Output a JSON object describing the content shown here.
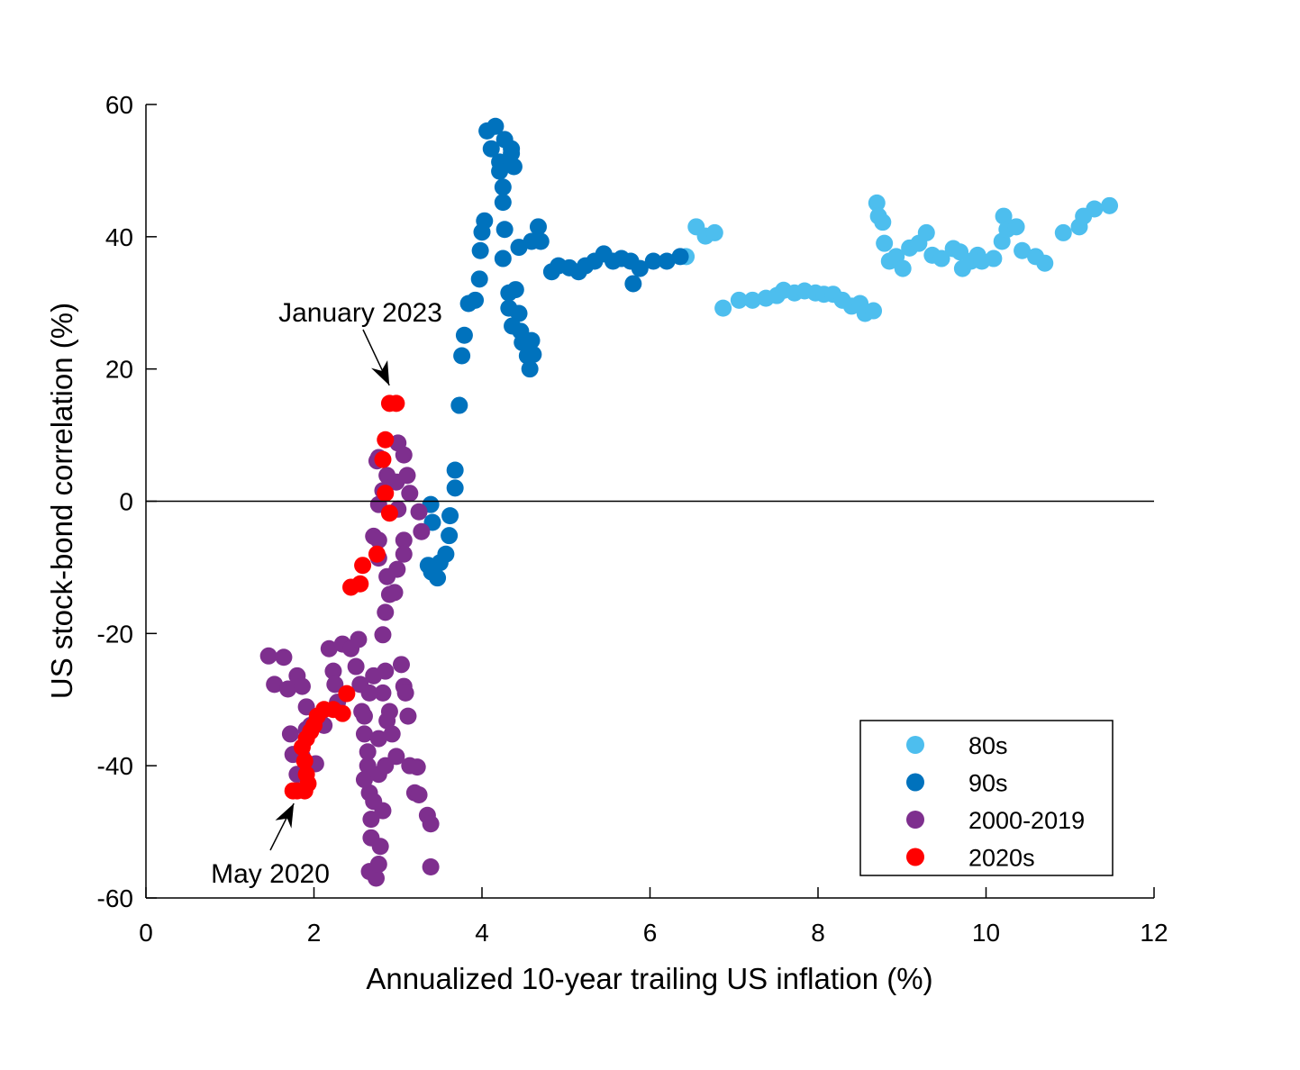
{
  "chart_data": {
    "type": "scatter",
    "title": "",
    "xlabel": "Annualized 10-year trailing US inflation (%)",
    "ylabel": "US stock-bond correlation (%)",
    "xlim": [
      0,
      12
    ],
    "ylim": [
      -60,
      60
    ],
    "xticks": [
      0,
      2,
      4,
      6,
      8,
      10,
      12
    ],
    "yticks": [
      -60,
      -40,
      -20,
      0,
      20,
      40,
      60
    ],
    "xtick_labels": [
      "0",
      "2",
      "4",
      "6",
      "8",
      "10",
      "12"
    ],
    "ytick_labels": [
      "-60",
      "-40",
      "-20",
      "0",
      "20",
      "40",
      "60"
    ],
    "grid": false,
    "reference_line_y": 0,
    "legend_placement": "bottom-right",
    "annotations": [
      {
        "text": "January 2023",
        "x": 2.94,
        "y": 14.8
      },
      {
        "text": "May 2020",
        "x": 1.75,
        "y": -43.8
      }
    ],
    "series": [
      {
        "name": "80s",
        "color": "#4DBEEE",
        "points": [
          [
            6.43,
            37.0
          ],
          [
            6.55,
            41.5
          ],
          [
            6.66,
            40.1
          ],
          [
            6.77,
            40.6
          ],
          [
            6.87,
            29.2
          ],
          [
            7.06,
            30.4
          ],
          [
            7.22,
            30.4
          ],
          [
            7.38,
            30.7
          ],
          [
            7.51,
            31.1
          ],
          [
            7.59,
            31.9
          ],
          [
            7.72,
            31.5
          ],
          [
            7.84,
            31.8
          ],
          [
            7.97,
            31.5
          ],
          [
            8.07,
            31.3
          ],
          [
            8.18,
            31.3
          ],
          [
            8.29,
            30.4
          ],
          [
            8.4,
            29.5
          ],
          [
            8.5,
            29.9
          ],
          [
            8.56,
            28.4
          ],
          [
            8.66,
            28.8
          ],
          [
            8.7,
            45.1
          ],
          [
            8.72,
            43.1
          ],
          [
            8.77,
            42.2
          ],
          [
            8.79,
            39.0
          ],
          [
            8.85,
            36.3
          ],
          [
            8.93,
            37.0
          ],
          [
            9.01,
            35.2
          ],
          [
            9.09,
            38.3
          ],
          [
            9.2,
            39.0
          ],
          [
            9.29,
            40.6
          ],
          [
            9.36,
            37.2
          ],
          [
            9.47,
            36.7
          ],
          [
            9.61,
            38.2
          ],
          [
            9.69,
            37.7
          ],
          [
            9.72,
            35.2
          ],
          [
            9.82,
            36.3
          ],
          [
            9.9,
            37.2
          ],
          [
            9.95,
            36.3
          ],
          [
            10.09,
            36.7
          ],
          [
            10.19,
            39.3
          ],
          [
            10.21,
            43.1
          ],
          [
            10.25,
            41.1
          ],
          [
            10.36,
            41.5
          ],
          [
            10.43,
            37.9
          ],
          [
            10.59,
            37.0
          ],
          [
            10.7,
            36.0
          ],
          [
            10.92,
            40.6
          ],
          [
            11.11,
            41.5
          ],
          [
            11.16,
            43.1
          ],
          [
            11.29,
            44.2
          ],
          [
            11.47,
            44.7
          ]
        ]
      },
      {
        "name": "90s",
        "color": "#0072BD",
        "points": [
          [
            4.06,
            56.0
          ],
          [
            4.16,
            56.7
          ],
          [
            4.11,
            53.3
          ],
          [
            4.21,
            51.3
          ],
          [
            4.27,
            54.7
          ],
          [
            4.35,
            53.3
          ],
          [
            4.38,
            50.6
          ],
          [
            4.25,
            47.5
          ],
          [
            4.25,
            45.2
          ],
          [
            4.27,
            41.1
          ],
          [
            4.25,
            36.7
          ],
          [
            4.03,
            42.4
          ],
          [
            4.0,
            40.7
          ],
          [
            3.98,
            37.9
          ],
          [
            3.97,
            33.6
          ],
          [
            3.92,
            30.4
          ],
          [
            3.84,
            29.9
          ],
          [
            3.79,
            25.1
          ],
          [
            3.76,
            22.0
          ],
          [
            3.73,
            14.5
          ],
          [
            3.68,
            4.7
          ],
          [
            3.68,
            2.0
          ],
          [
            3.62,
            -2.2
          ],
          [
            3.61,
            -5.2
          ],
          [
            3.57,
            -8.0
          ],
          [
            3.5,
            -9.3
          ],
          [
            3.47,
            -11.6
          ],
          [
            3.4,
            -10.7
          ],
          [
            3.36,
            -9.7
          ],
          [
            3.41,
            -3.2
          ],
          [
            3.39,
            -0.5
          ],
          [
            4.32,
            31.5
          ],
          [
            4.32,
            29.2
          ],
          [
            4.4,
            32.0
          ],
          [
            4.44,
            28.4
          ],
          [
            4.36,
            26.5
          ],
          [
            4.46,
            25.7
          ],
          [
            4.48,
            24.0
          ],
          [
            4.54,
            22.0
          ],
          [
            4.57,
            20.0
          ],
          [
            4.59,
            24.3
          ],
          [
            4.61,
            22.2
          ],
          [
            4.44,
            38.4
          ],
          [
            4.59,
            39.3
          ],
          [
            4.67,
            41.5
          ],
          [
            4.7,
            39.3
          ],
          [
            4.83,
            34.7
          ],
          [
            4.91,
            35.6
          ],
          [
            5.04,
            35.3
          ],
          [
            5.15,
            34.7
          ],
          [
            5.23,
            35.6
          ],
          [
            5.34,
            36.3
          ],
          [
            5.45,
            37.4
          ],
          [
            5.56,
            36.3
          ],
          [
            5.66,
            36.7
          ],
          [
            5.77,
            36.3
          ],
          [
            5.8,
            32.9
          ],
          [
            5.88,
            35.2
          ],
          [
            6.04,
            36.3
          ],
          [
            6.2,
            36.3
          ],
          [
            6.36,
            37.0
          ],
          [
            4.35,
            52.6
          ],
          [
            4.21,
            49.9
          ]
        ]
      },
      {
        "name": "2000-2019",
        "color": "#7E2F8E",
        "points": [
          [
            1.46,
            -23.4
          ],
          [
            1.53,
            -27.7
          ],
          [
            1.64,
            -23.6
          ],
          [
            1.69,
            -28.4
          ],
          [
            1.8,
            -26.4
          ],
          [
            1.86,
            -28.0
          ],
          [
            1.91,
            -31.1
          ],
          [
            1.72,
            -35.2
          ],
          [
            1.75,
            -38.3
          ],
          [
            1.8,
            -41.3
          ],
          [
            1.96,
            -33.9
          ],
          [
            2.02,
            -39.7
          ],
          [
            2.18,
            -22.3
          ],
          [
            2.23,
            -25.7
          ],
          [
            2.25,
            -27.7
          ],
          [
            2.34,
            -21.6
          ],
          [
            2.44,
            -22.3
          ],
          [
            2.5,
            -25.0
          ],
          [
            2.55,
            -27.7
          ],
          [
            2.53,
            -20.9
          ],
          [
            2.57,
            -31.8
          ],
          [
            2.6,
            -35.2
          ],
          [
            2.64,
            -40.0
          ],
          [
            2.66,
            -44.1
          ],
          [
            2.68,
            -48.1
          ],
          [
            2.68,
            -50.9
          ],
          [
            2.66,
            -56.0
          ],
          [
            2.74,
            -57.0
          ],
          [
            2.77,
            -54.9
          ],
          [
            2.79,
            -52.2
          ],
          [
            2.82,
            -46.8
          ],
          [
            2.77,
            -35.9
          ],
          [
            2.82,
            -29.0
          ],
          [
            2.85,
            -25.7
          ],
          [
            2.82,
            -20.2
          ],
          [
            2.85,
            -16.8
          ],
          [
            2.9,
            -14.1
          ],
          [
            2.87,
            -11.4
          ],
          [
            2.77,
            -8.6
          ],
          [
            2.71,
            -5.3
          ],
          [
            2.77,
            -0.5
          ],
          [
            2.82,
            1.6
          ],
          [
            2.75,
            6.1
          ],
          [
            2.77,
            6.6
          ],
          [
            2.87,
            3.9
          ],
          [
            3.0,
            8.8
          ],
          [
            3.07,
            7.0
          ],
          [
            2.98,
            2.9
          ],
          [
            3.0,
            -1.2
          ],
          [
            3.07,
            -5.9
          ],
          [
            3.07,
            -8.0
          ],
          [
            2.99,
            -10.3
          ],
          [
            2.96,
            -13.8
          ],
          [
            3.11,
            3.9
          ],
          [
            3.14,
            1.2
          ],
          [
            3.25,
            -1.6
          ],
          [
            3.28,
            -4.6
          ],
          [
            3.04,
            -24.7
          ],
          [
            3.07,
            -28.0
          ],
          [
            3.09,
            -29.0
          ],
          [
            3.12,
            -32.5
          ],
          [
            3.14,
            -40.0
          ],
          [
            3.23,
            -40.2
          ],
          [
            3.2,
            -44.1
          ],
          [
            3.25,
            -44.4
          ],
          [
            3.35,
            -47.5
          ],
          [
            3.39,
            -48.8
          ],
          [
            3.39,
            -55.3
          ],
          [
            2.98,
            -38.6
          ],
          [
            2.93,
            -35.2
          ],
          [
            2.9,
            -31.8
          ],
          [
            2.6,
            -42.1
          ],
          [
            2.64,
            -37.9
          ],
          [
            2.6,
            -32.5
          ],
          [
            2.66,
            -29.0
          ],
          [
            2.71,
            -26.4
          ],
          [
            2.87,
            -33.2
          ],
          [
            2.77,
            -41.3
          ],
          [
            2.71,
            -45.4
          ],
          [
            2.85,
            -40.0
          ],
          [
            1.86,
            -38.6
          ],
          [
            1.91,
            -34.5
          ],
          [
            2.12,
            -33.9
          ],
          [
            2.28,
            -30.4
          ],
          [
            2.77,
            -5.9
          ]
        ]
      },
      {
        "name": "2020s",
        "color": "#FF0000",
        "points": [
          [
            2.9,
            14.8
          ],
          [
            2.98,
            14.8
          ],
          [
            2.85,
            9.3
          ],
          [
            2.82,
            6.3
          ],
          [
            2.85,
            1.2
          ],
          [
            2.9,
            -1.8
          ],
          [
            2.75,
            -8.0
          ],
          [
            2.58,
            -9.7
          ],
          [
            2.55,
            -12.5
          ],
          [
            2.44,
            -13.0
          ],
          [
            2.39,
            -29.1
          ],
          [
            2.34,
            -32.1
          ],
          [
            2.23,
            -31.5
          ],
          [
            2.12,
            -31.5
          ],
          [
            2.04,
            -32.5
          ],
          [
            2.0,
            -33.9
          ],
          [
            1.96,
            -34.8
          ],
          [
            1.91,
            -35.9
          ],
          [
            1.86,
            -37.2
          ],
          [
            1.89,
            -39.3
          ],
          [
            1.91,
            -41.3
          ],
          [
            1.93,
            -42.7
          ],
          [
            1.89,
            -43.8
          ],
          [
            1.8,
            -43.8
          ],
          [
            1.75,
            -43.8
          ]
        ]
      }
    ]
  }
}
